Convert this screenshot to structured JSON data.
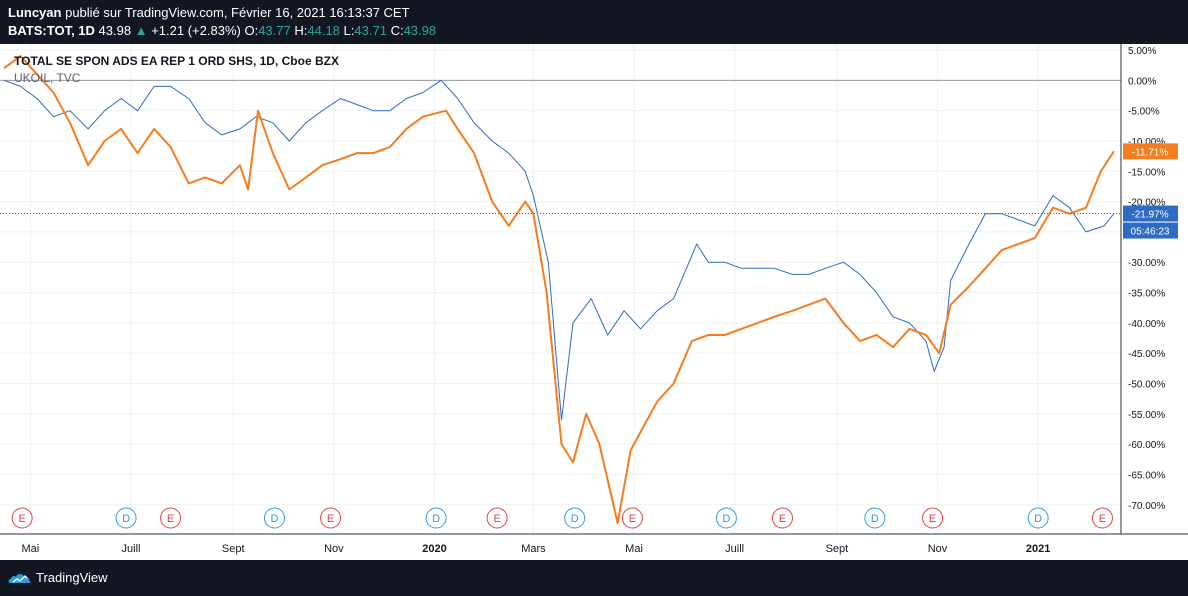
{
  "header": {
    "author": "Luncyan",
    "published_text": "publié sur TradingView.com, Février 16, 2021 16:13:37 CET",
    "symbol": "BATS:TOT, 1D",
    "price": "43.98",
    "change_arrow": "▲",
    "change": "+1.21 (+2.83%)",
    "open_label": "O:",
    "open": "43.77",
    "high_label": "H:",
    "high": "44.18",
    "low_label": "L:",
    "low": "43.71",
    "close_label": "C:",
    "close": "43.98"
  },
  "legend": {
    "main": "TOTAL SE SPON ADS EA REP 1 ORD SHS, 1D, Cboe BZX",
    "compare": "UKOIL, TVC"
  },
  "footer": {
    "brand": "TradingView"
  },
  "colors": {
    "total": "#2e6bc5",
    "ukoil": "#f57c1f",
    "earnings": "#e04040",
    "dividends": "#2e9be0",
    "background": "#ffffff",
    "frame": "#131722"
  },
  "chart_data": {
    "type": "line",
    "title": "TOTAL SE SPON ADS EA REP 1 ORD SHS, 1D, Cboe BZX",
    "xlabel": "",
    "ylabel": "",
    "ylim": [
      -73.5,
      5.5
    ],
    "y_ticks": [
      "5.00%",
      "0.00%",
      "-5.00%",
      "-10.00%",
      "-15.00%",
      "-20.00%",
      "-25.00%",
      "-30.00%",
      "-35.00%",
      "-40.00%",
      "-45.00%",
      "-50.00%",
      "-55.00%",
      "-60.00%",
      "-65.00%",
      "-70.00%"
    ],
    "y_tick_values": [
      5,
      0,
      -5,
      -10,
      -15,
      -20,
      -25,
      -30,
      -35,
      -40,
      -45,
      -50,
      -55,
      -60,
      -65,
      -70
    ],
    "x_ticks": [
      "Mai",
      "Juill",
      "Sept",
      "Nov",
      "2020",
      "Mars",
      "Mai",
      "Juill",
      "Sept",
      "Nov",
      "2021"
    ],
    "x_tick_dates": [
      "2019-05-01",
      "2019-07-01",
      "2019-09-01",
      "2019-11-01",
      "2020-01-01",
      "2020-03-01",
      "2020-05-01",
      "2020-07-01",
      "2020-09-01",
      "2020-11-01",
      "2021-01-01"
    ],
    "x_range": [
      "2019-04-15",
      "2021-02-16"
    ],
    "grid": true,
    "series": [
      {
        "name": "TOTAL SE SPON ADS EA REP 1 ORD SHS",
        "last_label": "-21.97%",
        "countdown": "05:46:23",
        "points": [
          [
            "2019-04-15",
            0
          ],
          [
            "2019-04-25",
            -1
          ],
          [
            "2019-05-05",
            -3
          ],
          [
            "2019-05-15",
            -6
          ],
          [
            "2019-05-25",
            -5
          ],
          [
            "2019-06-05",
            -8
          ],
          [
            "2019-06-15",
            -5
          ],
          [
            "2019-06-25",
            -3
          ],
          [
            "2019-07-05",
            -5
          ],
          [
            "2019-07-15",
            -1
          ],
          [
            "2019-07-25",
            -1
          ],
          [
            "2019-08-05",
            -3
          ],
          [
            "2019-08-15",
            -7
          ],
          [
            "2019-08-25",
            -9
          ],
          [
            "2019-09-05",
            -8
          ],
          [
            "2019-09-15",
            -6
          ],
          [
            "2019-09-25",
            -7
          ],
          [
            "2019-10-05",
            -10
          ],
          [
            "2019-10-15",
            -7
          ],
          [
            "2019-10-25",
            -5
          ],
          [
            "2019-11-05",
            -3
          ],
          [
            "2019-11-15",
            -4
          ],
          [
            "2019-11-25",
            -5
          ],
          [
            "2019-12-05",
            -5
          ],
          [
            "2019-12-15",
            -3
          ],
          [
            "2019-12-25",
            -2
          ],
          [
            "2020-01-05",
            0
          ],
          [
            "2020-01-15",
            -3
          ],
          [
            "2020-01-25",
            -7
          ],
          [
            "2020-02-05",
            -10
          ],
          [
            "2020-02-15",
            -12
          ],
          [
            "2020-02-25",
            -15
          ],
          [
            "2020-03-01",
            -19
          ],
          [
            "2020-03-10",
            -30
          ],
          [
            "2020-03-18",
            -56
          ],
          [
            "2020-03-25",
            -40
          ],
          [
            "2020-04-05",
            -36
          ],
          [
            "2020-04-15",
            -42
          ],
          [
            "2020-04-25",
            -38
          ],
          [
            "2020-05-05",
            -41
          ],
          [
            "2020-05-15",
            -38
          ],
          [
            "2020-05-25",
            -36
          ],
          [
            "2020-06-08",
            -27
          ],
          [
            "2020-06-15",
            -30
          ],
          [
            "2020-06-25",
            -30
          ],
          [
            "2020-07-05",
            -31
          ],
          [
            "2020-07-15",
            -31
          ],
          [
            "2020-07-25",
            -31
          ],
          [
            "2020-08-05",
            -32
          ],
          [
            "2020-08-15",
            -32
          ],
          [
            "2020-08-25",
            -31
          ],
          [
            "2020-09-05",
            -30
          ],
          [
            "2020-09-15",
            -32
          ],
          [
            "2020-09-25",
            -35
          ],
          [
            "2020-10-05",
            -39
          ],
          [
            "2020-10-15",
            -40
          ],
          [
            "2020-10-25",
            -43
          ],
          [
            "2020-10-30",
            -48
          ],
          [
            "2020-11-05",
            -44
          ],
          [
            "2020-11-09",
            -33
          ],
          [
            "2020-11-20",
            -27
          ],
          [
            "2020-11-30",
            -22
          ],
          [
            "2020-12-10",
            -22
          ],
          [
            "2020-12-20",
            -23
          ],
          [
            "2020-12-30",
            -24
          ],
          [
            "2021-01-10",
            -19
          ],
          [
            "2021-01-20",
            -21
          ],
          [
            "2021-01-30",
            -25
          ],
          [
            "2021-02-10",
            -24
          ],
          [
            "2021-02-16",
            -21.97
          ]
        ]
      },
      {
        "name": "UKOIL, TVC",
        "last_label": "-11.71%",
        "points": [
          [
            "2019-04-15",
            2
          ],
          [
            "2019-04-25",
            4
          ],
          [
            "2019-05-05",
            1
          ],
          [
            "2019-05-15",
            -2
          ],
          [
            "2019-05-25",
            -7
          ],
          [
            "2019-06-05",
            -14
          ],
          [
            "2019-06-15",
            -10
          ],
          [
            "2019-06-25",
            -8
          ],
          [
            "2019-07-05",
            -12
          ],
          [
            "2019-07-15",
            -8
          ],
          [
            "2019-07-25",
            -11
          ],
          [
            "2019-08-05",
            -17
          ],
          [
            "2019-08-15",
            -16
          ],
          [
            "2019-08-25",
            -17
          ],
          [
            "2019-09-05",
            -14
          ],
          [
            "2019-09-10",
            -18
          ],
          [
            "2019-09-16",
            -5
          ],
          [
            "2019-09-25",
            -12
          ],
          [
            "2019-10-05",
            -18
          ],
          [
            "2019-10-15",
            -16
          ],
          [
            "2019-10-25",
            -14
          ],
          [
            "2019-11-05",
            -13
          ],
          [
            "2019-11-15",
            -12
          ],
          [
            "2019-11-25",
            -12
          ],
          [
            "2019-12-05",
            -11
          ],
          [
            "2019-12-15",
            -8
          ],
          [
            "2019-12-25",
            -6
          ],
          [
            "2020-01-08",
            -5
          ],
          [
            "2020-01-15",
            -8
          ],
          [
            "2020-01-25",
            -12
          ],
          [
            "2020-02-05",
            -20
          ],
          [
            "2020-02-15",
            -24
          ],
          [
            "2020-02-25",
            -20
          ],
          [
            "2020-03-01",
            -22
          ],
          [
            "2020-03-09",
            -35
          ],
          [
            "2020-03-18",
            -60
          ],
          [
            "2020-03-25",
            -63
          ],
          [
            "2020-04-02",
            -55
          ],
          [
            "2020-04-10",
            -60
          ],
          [
            "2020-04-21",
            -73
          ],
          [
            "2020-04-29",
            -61
          ],
          [
            "2020-05-05",
            -58
          ],
          [
            "2020-05-15",
            -53
          ],
          [
            "2020-05-25",
            -50
          ],
          [
            "2020-06-05",
            -43
          ],
          [
            "2020-06-15",
            -42
          ],
          [
            "2020-06-25",
            -42
          ],
          [
            "2020-07-05",
            -41
          ],
          [
            "2020-07-15",
            -40
          ],
          [
            "2020-07-25",
            -39
          ],
          [
            "2020-08-05",
            -38
          ],
          [
            "2020-08-15",
            -37
          ],
          [
            "2020-08-25",
            -36
          ],
          [
            "2020-09-05",
            -40
          ],
          [
            "2020-09-15",
            -43
          ],
          [
            "2020-09-25",
            -42
          ],
          [
            "2020-10-05",
            -44
          ],
          [
            "2020-10-15",
            -41
          ],
          [
            "2020-10-25",
            -42
          ],
          [
            "2020-11-02",
            -45
          ],
          [
            "2020-11-09",
            -37
          ],
          [
            "2020-11-20",
            -34
          ],
          [
            "2020-11-30",
            -31
          ],
          [
            "2020-12-10",
            -28
          ],
          [
            "2020-12-20",
            -27
          ],
          [
            "2020-12-30",
            -26
          ],
          [
            "2021-01-10",
            -21
          ],
          [
            "2021-01-20",
            -22
          ],
          [
            "2021-01-30",
            -21
          ],
          [
            "2021-02-08",
            -15
          ],
          [
            "2021-02-16",
            -11.71
          ]
        ]
      }
    ],
    "events": [
      {
        "type": "E",
        "date": "2019-04-26"
      },
      {
        "type": "D",
        "date": "2019-06-28"
      },
      {
        "type": "E",
        "date": "2019-07-25"
      },
      {
        "type": "D",
        "date": "2019-09-26"
      },
      {
        "type": "E",
        "date": "2019-10-30"
      },
      {
        "type": "D",
        "date": "2020-01-02"
      },
      {
        "type": "E",
        "date": "2020-02-08"
      },
      {
        "type": "D",
        "date": "2020-03-26"
      },
      {
        "type": "E",
        "date": "2020-04-30"
      },
      {
        "type": "D",
        "date": "2020-06-26"
      },
      {
        "type": "E",
        "date": "2020-07-30"
      },
      {
        "type": "D",
        "date": "2020-09-24"
      },
      {
        "type": "E",
        "date": "2020-10-29"
      },
      {
        "type": "D",
        "date": "2021-01-01"
      },
      {
        "type": "E",
        "date": "2021-02-09"
      }
    ]
  }
}
